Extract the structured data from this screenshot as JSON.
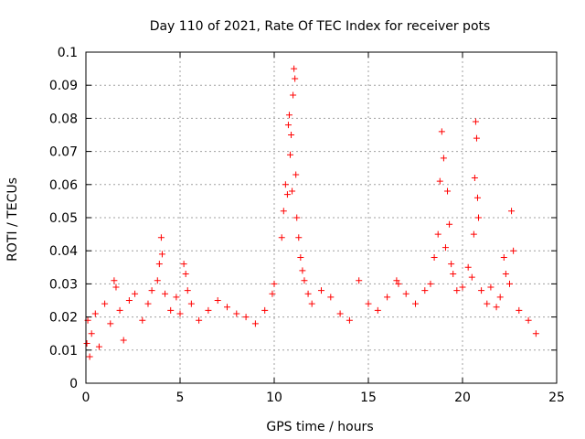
{
  "chart_data": {
    "type": "scatter",
    "title": "Day 110 of 2021, Rate Of TEC Index for receiver pots",
    "xlabel": "GPS time / hours",
    "ylabel": "ROTI / TECUs",
    "xlim": [
      0,
      25
    ],
    "ylim": [
      0,
      0.1
    ],
    "x_ticks": [
      0,
      5,
      10,
      15,
      20,
      25
    ],
    "x_tick_labels": [
      "0",
      "5",
      "10",
      "15",
      "20",
      "25"
    ],
    "y_ticks": [
      0,
      0.01,
      0.02,
      0.03,
      0.04,
      0.05,
      0.06,
      0.07,
      0.08,
      0.09,
      0.1
    ],
    "y_tick_labels": [
      "0",
      "0.01",
      "0.02",
      "0.03",
      "0.04",
      "0.05",
      "0.06",
      "0.07",
      "0.08",
      "0.09",
      "0.1"
    ],
    "grid": true,
    "marker": "+",
    "color": "#ff0000",
    "series": [
      {
        "name": "ROTI",
        "points": [
          [
            0.05,
            0.012
          ],
          [
            0.1,
            0.019
          ],
          [
            0.2,
            0.008
          ],
          [
            0.3,
            0.015
          ],
          [
            0.5,
            0.021
          ],
          [
            0.7,
            0.011
          ],
          [
            1.0,
            0.024
          ],
          [
            1.3,
            0.018
          ],
          [
            1.5,
            0.031
          ],
          [
            1.6,
            0.029
          ],
          [
            1.8,
            0.022
          ],
          [
            2.0,
            0.013
          ],
          [
            2.3,
            0.025
          ],
          [
            2.6,
            0.027
          ],
          [
            3.0,
            0.019
          ],
          [
            3.3,
            0.024
          ],
          [
            3.5,
            0.028
          ],
          [
            3.8,
            0.031
          ],
          [
            3.9,
            0.036
          ],
          [
            4.0,
            0.044
          ],
          [
            4.05,
            0.039
          ],
          [
            4.2,
            0.027
          ],
          [
            4.5,
            0.022
          ],
          [
            4.8,
            0.026
          ],
          [
            5.0,
            0.021
          ],
          [
            5.2,
            0.036
          ],
          [
            5.3,
            0.033
          ],
          [
            5.4,
            0.028
          ],
          [
            5.6,
            0.024
          ],
          [
            6.0,
            0.019
          ],
          [
            6.5,
            0.022
          ],
          [
            7.0,
            0.025
          ],
          [
            7.5,
            0.023
          ],
          [
            8.0,
            0.021
          ],
          [
            8.5,
            0.02
          ],
          [
            9.0,
            0.018
          ],
          [
            9.5,
            0.022
          ],
          [
            9.9,
            0.027
          ],
          [
            10.0,
            0.03
          ],
          [
            10.4,
            0.044
          ],
          [
            10.5,
            0.052
          ],
          [
            10.6,
            0.06
          ],
          [
            10.7,
            0.057
          ],
          [
            10.75,
            0.078
          ],
          [
            10.8,
            0.081
          ],
          [
            10.85,
            0.069
          ],
          [
            10.9,
            0.075
          ],
          [
            10.95,
            0.058
          ],
          [
            11.0,
            0.087
          ],
          [
            11.05,
            0.095
          ],
          [
            11.1,
            0.092
          ],
          [
            11.15,
            0.063
          ],
          [
            11.2,
            0.05
          ],
          [
            11.3,
            0.044
          ],
          [
            11.4,
            0.038
          ],
          [
            11.5,
            0.034
          ],
          [
            11.6,
            0.031
          ],
          [
            11.8,
            0.027
          ],
          [
            12.0,
            0.024
          ],
          [
            12.5,
            0.028
          ],
          [
            13.0,
            0.026
          ],
          [
            13.5,
            0.021
          ],
          [
            14.0,
            0.019
          ],
          [
            14.5,
            0.031
          ],
          [
            15.0,
            0.024
          ],
          [
            15.5,
            0.022
          ],
          [
            16.0,
            0.026
          ],
          [
            16.5,
            0.031
          ],
          [
            16.6,
            0.03
          ],
          [
            17.0,
            0.027
          ],
          [
            17.5,
            0.024
          ],
          [
            18.0,
            0.028
          ],
          [
            18.3,
            0.03
          ],
          [
            18.5,
            0.038
          ],
          [
            18.7,
            0.045
          ],
          [
            18.8,
            0.061
          ],
          [
            18.9,
            0.076
          ],
          [
            19.0,
            0.068
          ],
          [
            19.1,
            0.041
          ],
          [
            19.2,
            0.058
          ],
          [
            19.3,
            0.048
          ],
          [
            19.4,
            0.036
          ],
          [
            19.5,
            0.033
          ],
          [
            19.7,
            0.028
          ],
          [
            20.0,
            0.029
          ],
          [
            20.3,
            0.035
          ],
          [
            20.5,
            0.032
          ],
          [
            20.6,
            0.045
          ],
          [
            20.65,
            0.062
          ],
          [
            20.7,
            0.079
          ],
          [
            20.75,
            0.074
          ],
          [
            20.8,
            0.056
          ],
          [
            20.85,
            0.05
          ],
          [
            21.0,
            0.028
          ],
          [
            21.3,
            0.024
          ],
          [
            21.5,
            0.029
          ],
          [
            21.8,
            0.023
          ],
          [
            22.0,
            0.026
          ],
          [
            22.2,
            0.038
          ],
          [
            22.3,
            0.033
          ],
          [
            22.5,
            0.03
          ],
          [
            22.6,
            0.052
          ],
          [
            22.7,
            0.04
          ],
          [
            23.0,
            0.022
          ],
          [
            23.5,
            0.019
          ],
          [
            23.9,
            0.015
          ]
        ]
      }
    ]
  }
}
